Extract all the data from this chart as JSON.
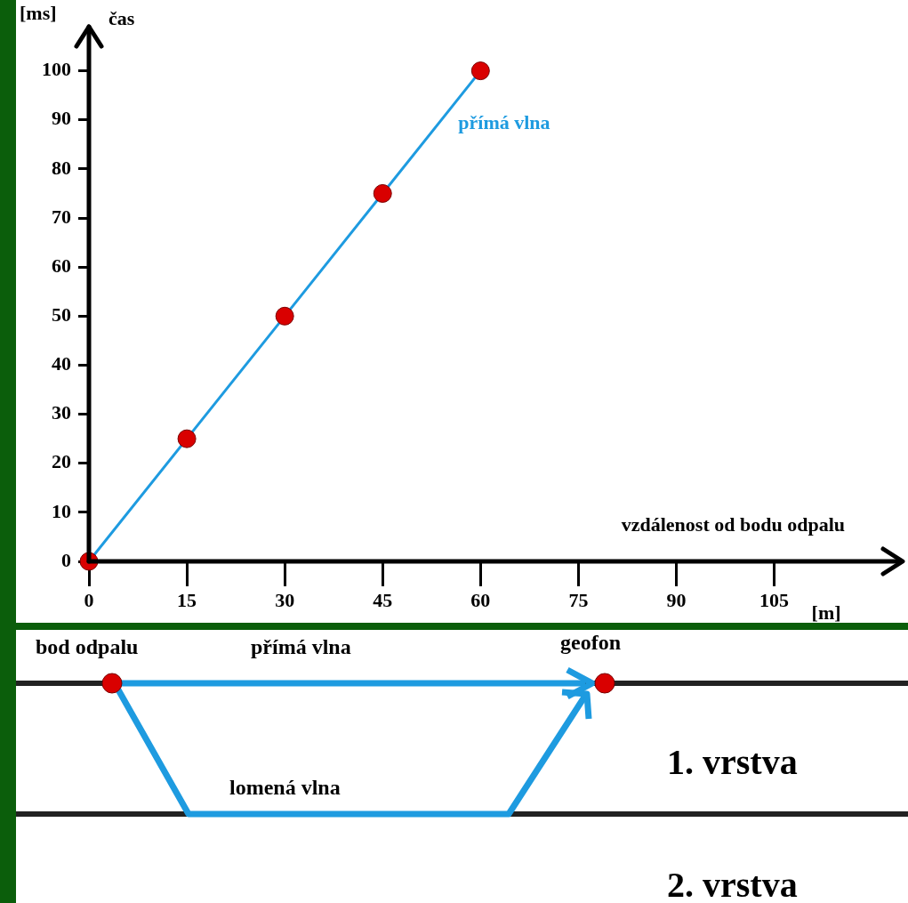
{
  "chart_data": {
    "type": "line",
    "xlabel": "vzdálenost od bodu odpalu",
    "ylabel": "čas",
    "x": [
      0,
      15,
      30,
      45,
      60
    ],
    "series": [
      {
        "name": "přímá vlna",
        "color": "#1e9be0",
        "values": [
          0,
          25,
          50,
          75,
          100
        ]
      }
    ],
    "marker": "circle",
    "line_style": "solid",
    "grid": false,
    "legend": false,
    "xlim": [
      0,
      124
    ],
    "xticks": [
      0,
      15,
      30,
      45,
      60,
      75,
      90,
      105
    ],
    "ylim": [
      0,
      109
    ],
    "yticks": [
      0,
      10,
      20,
      30,
      40,
      50,
      60,
      70,
      80,
      90,
      100
    ],
    "annotations": [
      "[ms]",
      "[m]",
      "bod odpalu",
      "přímá vlna",
      "geofon",
      "1. vrstva",
      "lomená vlna",
      "2. vrstva"
    ]
  }
}
